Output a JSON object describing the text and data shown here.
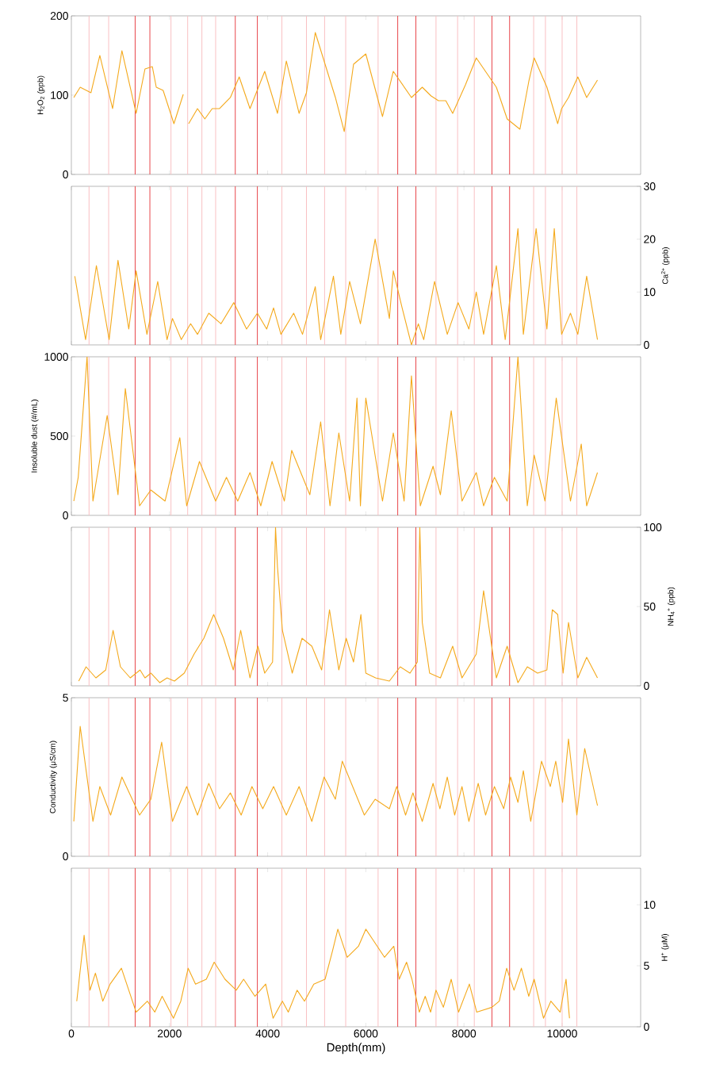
{
  "chart_data": [
    {
      "type": "line",
      "ylabel": "H$_{2}$O$_{2}$ (ppb)",
      "xlim": [
        0,
        11600
      ],
      "xticks": [
        0,
        2000,
        4000,
        6000,
        8000,
        10000
      ],
      "ylim": [
        0,
        200
      ],
      "yticks": [
        0,
        100,
        200
      ],
      "tick_labels": "y",
      "x": [
        10720,
        10500,
        10320,
        10130,
        9990,
        9910,
        9690,
        9430,
        9320,
        9140,
        8880,
        8660,
        8250,
        8030,
        7770,
        7630,
        7480,
        7330,
        7150,
        6930,
        6560,
        6340,
        6000,
        5750,
        5560,
        5380,
        4970,
        4790,
        4640,
        4380,
        4200,
        3940,
        3640,
        3420,
        3240,
        3020,
        2870,
        2720,
        2570,
        2390,
        2330,
        2280,
        2090,
        1870,
        1730,
        1650,
        1500,
        1320,
        1030,
        840,
        580,
        400,
        180,
        50
      ],
      "series": [
        {
          "color": "#f4a91c",
          "values": [
            119,
            97,
            123,
            97,
            83,
            64,
            110,
            147,
            117,
            57,
            70,
            110,
            147,
            113,
            77,
            93,
            93,
            99,
            110,
            97,
            130,
            73,
            152,
            139,
            54,
            97,
            179,
            103,
            77,
            143,
            77,
            130,
            83,
            123,
            97,
            83,
            83,
            70,
            83,
            64,
            null,
            101,
            64,
            106,
            110,
            136,
            133,
            77,
            156,
            83,
            150,
            103,
            110,
            97
          ]
        }
      ],
      "ref_lines": [
        {
          "axis": "x",
          "value": 360,
          "color": "#f9c0c3"
        },
        {
          "axis": "x",
          "value": 760,
          "color": "#f9c0c3"
        },
        {
          "axis": "x",
          "value": 1300,
          "color": "#e8474c"
        },
        {
          "axis": "x",
          "value": 1600,
          "color": "#e8474c"
        },
        {
          "axis": "x",
          "value": 2030,
          "color": "#f9c0c3"
        },
        {
          "axis": "x",
          "value": 2370,
          "color": "#f9c0c3"
        },
        {
          "axis": "x",
          "value": 2660,
          "color": "#f9c0c3"
        },
        {
          "axis": "x",
          "value": 2940,
          "color": "#f9c0c3"
        },
        {
          "axis": "x",
          "value": 3340,
          "color": "#e8474c"
        },
        {
          "axis": "x",
          "value": 3790,
          "color": "#e8474c"
        },
        {
          "axis": "x",
          "value": 4290,
          "color": "#f9c0c3"
        },
        {
          "axis": "x",
          "value": 4790,
          "color": "#f9c0c3"
        },
        {
          "axis": "x",
          "value": 5160,
          "color": "#f9c0c3"
        },
        {
          "axis": "x",
          "value": 5590,
          "color": "#f9c0c3"
        },
        {
          "axis": "x",
          "value": 6250,
          "color": "#f9c0c3"
        },
        {
          "axis": "x",
          "value": 6650,
          "color": "#e8474c"
        },
        {
          "axis": "x",
          "value": 7020,
          "color": "#e8474c"
        },
        {
          "axis": "x",
          "value": 7430,
          "color": "#f9c0c3"
        },
        {
          "axis": "x",
          "value": 7870,
          "color": "#f9c0c3"
        },
        {
          "axis": "x",
          "value": 8210,
          "color": "#f9c0c3"
        },
        {
          "axis": "x",
          "value": 8570,
          "color": "#e8474c"
        },
        {
          "axis": "x",
          "value": 8930,
          "color": "#e8474c"
        },
        {
          "axis": "x",
          "value": 9420,
          "color": "#f9c0c3"
        },
        {
          "axis": "x",
          "value": 9660,
          "color": "#f9c0c3"
        },
        {
          "axis": "x",
          "value": 10000,
          "color": "#f9c0c3"
        },
        {
          "axis": "x",
          "value": 10300,
          "color": "#f9c0c3"
        }
      ]
    },
    {
      "type": "line",
      "ylabel": "Ca$^{2+}$ (ppb)",
      "xlim": [
        0,
        11600
      ],
      "xticks": [
        0,
        2000,
        4000,
        6000,
        8000,
        10000
      ],
      "ylim": [
        0,
        30
      ],
      "yticks": [
        0,
        10,
        20,
        30
      ],
      "tick_labels": "y",
      "x": [
        10720,
        10500,
        10320,
        10170,
        9990,
        9840,
        9690,
        9470,
        9210,
        9100,
        8840,
        8660,
        8400,
        8250,
        8100,
        7880,
        7660,
        7400,
        7180,
        7070,
        6930,
        6740,
        6560,
        6480,
        6190,
        5890,
        5670,
        5490,
        5340,
        5080,
        4970,
        4710,
        4530,
        4270,
        4120,
        3980,
        3790,
        3570,
        3310,
        3050,
        2800,
        2570,
        2430,
        2240,
        2060,
        1950,
        1760,
        1540,
        1320,
        1170,
        950,
        770,
        510,
        290,
        70
      ],
      "series": [
        {
          "color": "#f4a91c",
          "values": [
            1,
            13,
            2,
            6,
            2,
            22,
            3,
            22,
            2,
            22,
            1,
            15,
            2,
            10,
            3,
            8,
            2,
            12,
            1,
            4,
            0,
            7,
            14,
            5,
            20,
            4,
            12,
            2,
            13,
            1,
            11,
            2,
            6,
            2,
            7,
            3,
            6,
            3,
            8,
            4,
            6,
            2,
            4,
            1,
            5,
            1,
            12,
            2,
            14,
            3,
            16,
            1,
            15,
            1,
            13
          ]
        }
      ],
      "ref_lines": [
        {
          "axis": "x",
          "value": 360,
          "color": "#f9c0c3"
        },
        {
          "axis": "x",
          "value": 760,
          "color": "#f9c0c3"
        },
        {
          "axis": "x",
          "value": 1300,
          "color": "#e8474c"
        },
        {
          "axis": "x",
          "value": 1600,
          "color": "#e8474c"
        },
        {
          "axis": "x",
          "value": 2030,
          "color": "#f9c0c3"
        },
        {
          "axis": "x",
          "value": 2370,
          "color": "#f9c0c3"
        },
        {
          "axis": "x",
          "value": 2660,
          "color": "#f9c0c3"
        },
        {
          "axis": "x",
          "value": 2940,
          "color": "#f9c0c3"
        },
        {
          "axis": "x",
          "value": 3340,
          "color": "#e8474c"
        },
        {
          "axis": "x",
          "value": 3790,
          "color": "#e8474c"
        },
        {
          "axis": "x",
          "value": 4290,
          "color": "#f9c0c3"
        },
        {
          "axis": "x",
          "value": 4790,
          "color": "#f9c0c3"
        },
        {
          "axis": "x",
          "value": 5160,
          "color": "#f9c0c3"
        },
        {
          "axis": "x",
          "value": 5590,
          "color": "#f9c0c3"
        },
        {
          "axis": "x",
          "value": 6250,
          "color": "#f9c0c3"
        },
        {
          "axis": "x",
          "value": 6650,
          "color": "#e8474c"
        },
        {
          "axis": "x",
          "value": 7020,
          "color": "#e8474c"
        },
        {
          "axis": "x",
          "value": 7430,
          "color": "#f9c0c3"
        },
        {
          "axis": "x",
          "value": 7870,
          "color": "#f9c0c3"
        },
        {
          "axis": "x",
          "value": 8210,
          "color": "#f9c0c3"
        },
        {
          "axis": "x",
          "value": 8570,
          "color": "#e8474c"
        },
        {
          "axis": "x",
          "value": 8930,
          "color": "#e8474c"
        },
        {
          "axis": "x",
          "value": 9420,
          "color": "#f9c0c3"
        },
        {
          "axis": "x",
          "value": 9660,
          "color": "#f9c0c3"
        },
        {
          "axis": "x",
          "value": 10000,
          "color": "#f9c0c3"
        },
        {
          "axis": "x",
          "value": 10300,
          "color": "#f9c0c3"
        }
      ]
    },
    {
      "type": "line",
      "ylabel": "Insoluble dust (#/mL)",
      "xlim": [
        0,
        11600
      ],
      "xticks": [
        0,
        2000,
        4000,
        6000,
        8000,
        10000
      ],
      "ylim": [
        0,
        1000
      ],
      "yticks": [
        0,
        500,
        1000
      ],
      "tick_labels": "y",
      "x": [
        10720,
        10500,
        10390,
        10170,
        9880,
        9650,
        9430,
        9290,
        9100,
        8880,
        8620,
        8400,
        8250,
        7960,
        7740,
        7520,
        7370,
        7110,
        6930,
        6780,
        6560,
        6340,
        6000,
        5890,
        5820,
        5670,
        5450,
        5270,
        5080,
        4860,
        4490,
        4340,
        4090,
        3860,
        3640,
        3390,
        3160,
        2940,
        2610,
        2350,
        2210,
        1910,
        1620,
        1390,
        1100,
        950,
        730,
        440,
        320,
        140,
        50
      ],
      "series": [
        {
          "color": "#f4a91c",
          "values": [
            270,
            60,
            450,
            90,
            740,
            90,
            380,
            60,
            1000,
            90,
            240,
            60,
            270,
            90,
            660,
            130,
            310,
            60,
            880,
            90,
            520,
            90,
            740,
            60,
            740,
            90,
            520,
            60,
            590,
            130,
            410,
            90,
            340,
            60,
            270,
            90,
            240,
            90,
            340,
            60,
            490,
            90,
            160,
            60,
            800,
            130,
            630,
            90,
            1000,
            240,
            90
          ]
        }
      ],
      "ref_lines": [
        {
          "axis": "x",
          "value": 360,
          "color": "#f9c0c3"
        },
        {
          "axis": "x",
          "value": 760,
          "color": "#f9c0c3"
        },
        {
          "axis": "x",
          "value": 1300,
          "color": "#e8474c"
        },
        {
          "axis": "x",
          "value": 1600,
          "color": "#e8474c"
        },
        {
          "axis": "x",
          "value": 2030,
          "color": "#f9c0c3"
        },
        {
          "axis": "x",
          "value": 2370,
          "color": "#f9c0c3"
        },
        {
          "axis": "x",
          "value": 2660,
          "color": "#f9c0c3"
        },
        {
          "axis": "x",
          "value": 2940,
          "color": "#f9c0c3"
        },
        {
          "axis": "x",
          "value": 3340,
          "color": "#e8474c"
        },
        {
          "axis": "x",
          "value": 3790,
          "color": "#e8474c"
        },
        {
          "axis": "x",
          "value": 4290,
          "color": "#f9c0c3"
        },
        {
          "axis": "x",
          "value": 4790,
          "color": "#f9c0c3"
        },
        {
          "axis": "x",
          "value": 5160,
          "color": "#f9c0c3"
        },
        {
          "axis": "x",
          "value": 5590,
          "color": "#f9c0c3"
        },
        {
          "axis": "x",
          "value": 6250,
          "color": "#f9c0c3"
        },
        {
          "axis": "x",
          "value": 6650,
          "color": "#e8474c"
        },
        {
          "axis": "x",
          "value": 7020,
          "color": "#e8474c"
        },
        {
          "axis": "x",
          "value": 7430,
          "color": "#f9c0c3"
        },
        {
          "axis": "x",
          "value": 7870,
          "color": "#f9c0c3"
        },
        {
          "axis": "x",
          "value": 8210,
          "color": "#f9c0c3"
        },
        {
          "axis": "x",
          "value": 8570,
          "color": "#e8474c"
        },
        {
          "axis": "x",
          "value": 8930,
          "color": "#e8474c"
        },
        {
          "axis": "x",
          "value": 9420,
          "color": "#f9c0c3"
        },
        {
          "axis": "x",
          "value": 9660,
          "color": "#f9c0c3"
        },
        {
          "axis": "x",
          "value": 10000,
          "color": "#f9c0c3"
        },
        {
          "axis": "x",
          "value": 10300,
          "color": "#f9c0c3"
        }
      ]
    },
    {
      "type": "line",
      "ylabel": "NH$_{4}$$^{+}$ (ppb)",
      "xlim": [
        0,
        11600
      ],
      "xticks": [
        0,
        2000,
        4000,
        6000,
        8000,
        10000
      ],
      "ylim": [
        0,
        100
      ],
      "yticks": [
        0,
        50,
        100
      ],
      "tick_labels": "y",
      "x": [
        10720,
        10500,
        10320,
        10130,
        10020,
        9910,
        9800,
        9690,
        9500,
        9290,
        9100,
        8880,
        8660,
        8400,
        8250,
        7960,
        7770,
        7520,
        7300,
        7150,
        7100,
        7050,
        6900,
        6700,
        6480,
        6200,
        6000,
        5900,
        5750,
        5600,
        5450,
        5260,
        5100,
        4900,
        4700,
        4500,
        4300,
        4200,
        4160,
        4100,
        3940,
        3800,
        3640,
        3450,
        3300,
        3100,
        2900,
        2700,
        2500,
        2300,
        2100,
        1950,
        1800,
        1620,
        1500,
        1400,
        1200,
        1000,
        850,
        700,
        500,
        300,
        150
      ],
      "series": [
        {
          "color": "#f4a91c",
          "values": [
            5,
            18,
            5,
            40,
            8,
            45,
            48,
            10,
            8,
            12,
            2,
            25,
            5,
            60,
            20,
            5,
            25,
            5,
            8,
            40,
            100,
            15,
            8,
            12,
            3,
            5,
            8,
            45,
            15,
            30,
            10,
            48,
            10,
            25,
            30,
            8,
            35,
            75,
            100,
            15,
            8,
            25,
            5,
            35,
            10,
            30,
            45,
            30,
            20,
            8,
            3,
            5,
            2,
            8,
            5,
            10,
            5,
            12,
            35,
            10,
            5,
            12,
            3
          ]
        }
      ],
      "ref_lines": [
        {
          "axis": "x",
          "value": 360,
          "color": "#f9c0c3"
        },
        {
          "axis": "x",
          "value": 760,
          "color": "#f9c0c3"
        },
        {
          "axis": "x",
          "value": 1300,
          "color": "#e8474c"
        },
        {
          "axis": "x",
          "value": 1600,
          "color": "#e8474c"
        },
        {
          "axis": "x",
          "value": 2030,
          "color": "#f9c0c3"
        },
        {
          "axis": "x",
          "value": 2370,
          "color": "#f9c0c3"
        },
        {
          "axis": "x",
          "value": 2660,
          "color": "#f9c0c3"
        },
        {
          "axis": "x",
          "value": 2940,
          "color": "#f9c0c3"
        },
        {
          "axis": "x",
          "value": 3340,
          "color": "#e8474c"
        },
        {
          "axis": "x",
          "value": 3790,
          "color": "#e8474c"
        },
        {
          "axis": "x",
          "value": 4290,
          "color": "#f9c0c3"
        },
        {
          "axis": "x",
          "value": 4790,
          "color": "#f9c0c3"
        },
        {
          "axis": "x",
          "value": 5160,
          "color": "#f9c0c3"
        },
        {
          "axis": "x",
          "value": 5590,
          "color": "#f9c0c3"
        },
        {
          "axis": "x",
          "value": 6250,
          "color": "#f9c0c3"
        },
        {
          "axis": "x",
          "value": 6650,
          "color": "#e8474c"
        },
        {
          "axis": "x",
          "value": 7020,
          "color": "#e8474c"
        },
        {
          "axis": "x",
          "value": 7430,
          "color": "#f9c0c3"
        },
        {
          "axis": "x",
          "value": 7870,
          "color": "#f9c0c3"
        },
        {
          "axis": "x",
          "value": 8210,
          "color": "#f9c0c3"
        },
        {
          "axis": "x",
          "value": 8570,
          "color": "#e8474c"
        },
        {
          "axis": "x",
          "value": 8930,
          "color": "#e8474c"
        },
        {
          "axis": "x",
          "value": 9420,
          "color": "#f9c0c3"
        },
        {
          "axis": "x",
          "value": 9660,
          "color": "#f9c0c3"
        },
        {
          "axis": "x",
          "value": 10000,
          "color": "#f9c0c3"
        },
        {
          "axis": "x",
          "value": 10300,
          "color": "#f9c0c3"
        }
      ]
    },
    {
      "type": "line",
      "ylabel": "Conductivity (μS/cm)",
      "xlim": [
        0,
        11600
      ],
      "xticks": [
        0,
        2000,
        4000,
        6000,
        8000,
        10000
      ],
      "ylim": [
        0,
        5
      ],
      "yticks": [
        0,
        5
      ],
      "tick_labels": "y",
      "x": [
        10720,
        10460,
        10300,
        10130,
        10010,
        9870,
        9760,
        9580,
        9360,
        9210,
        9100,
        8950,
        8810,
        8620,
        8440,
        8290,
        8100,
        7960,
        7810,
        7660,
        7510,
        7370,
        7150,
        6960,
        6810,
        6630,
        6480,
        6190,
        5970,
        5520,
        5380,
        5150,
        4900,
        4640,
        4380,
        4120,
        3900,
        3680,
        3460,
        3240,
        3020,
        2800,
        2570,
        2350,
        2060,
        1840,
        1620,
        1390,
        1030,
        800,
        580,
        440,
        180,
        50
      ],
      "series": [
        {
          "color": "#f4a91c",
          "values": [
            1.6,
            3.4,
            1.3,
            3.7,
            1.7,
            3.0,
            2.2,
            3.0,
            1.1,
            2.7,
            1.7,
            2.5,
            1.5,
            2.2,
            1.3,
            2.3,
            1.1,
            2.2,
            1.3,
            2.5,
            1.5,
            2.3,
            1.1,
            2.0,
            1.3,
            2.2,
            1.5,
            1.8,
            1.3,
            3.0,
            1.8,
            2.5,
            1.1,
            2.2,
            1.3,
            2.2,
            1.5,
            2.2,
            1.3,
            2.0,
            1.5,
            2.3,
            1.3,
            2.2,
            1.1,
            3.6,
            1.8,
            1.3,
            2.5,
            1.3,
            2.2,
            1.1,
            4.1,
            1.1
          ]
        }
      ],
      "ref_lines": [
        {
          "axis": "x",
          "value": 360,
          "color": "#f9c0c3"
        },
        {
          "axis": "x",
          "value": 760,
          "color": "#f9c0c3"
        },
        {
          "axis": "x",
          "value": 1300,
          "color": "#e8474c"
        },
        {
          "axis": "x",
          "value": 1600,
          "color": "#e8474c"
        },
        {
          "axis": "x",
          "value": 2030,
          "color": "#f9c0c3"
        },
        {
          "axis": "x",
          "value": 2370,
          "color": "#f9c0c3"
        },
        {
          "axis": "x",
          "value": 2660,
          "color": "#f9c0c3"
        },
        {
          "axis": "x",
          "value": 2940,
          "color": "#f9c0c3"
        },
        {
          "axis": "x",
          "value": 3340,
          "color": "#e8474c"
        },
        {
          "axis": "x",
          "value": 3790,
          "color": "#e8474c"
        },
        {
          "axis": "x",
          "value": 4290,
          "color": "#f9c0c3"
        },
        {
          "axis": "x",
          "value": 4790,
          "color": "#f9c0c3"
        },
        {
          "axis": "x",
          "value": 5160,
          "color": "#f9c0c3"
        },
        {
          "axis": "x",
          "value": 5590,
          "color": "#f9c0c3"
        },
        {
          "axis": "x",
          "value": 6250,
          "color": "#f9c0c3"
        },
        {
          "axis": "x",
          "value": 6650,
          "color": "#e8474c"
        },
        {
          "axis": "x",
          "value": 7020,
          "color": "#e8474c"
        },
        {
          "axis": "x",
          "value": 7430,
          "color": "#f9c0c3"
        },
        {
          "axis": "x",
          "value": 7870,
          "color": "#f9c0c3"
        },
        {
          "axis": "x",
          "value": 8210,
          "color": "#f9c0c3"
        },
        {
          "axis": "x",
          "value": 8570,
          "color": "#e8474c"
        },
        {
          "axis": "x",
          "value": 8930,
          "color": "#e8474c"
        },
        {
          "axis": "x",
          "value": 9420,
          "color": "#f9c0c3"
        },
        {
          "axis": "x",
          "value": 9660,
          "color": "#f9c0c3"
        },
        {
          "axis": "x",
          "value": 10000,
          "color": "#f9c0c3"
        },
        {
          "axis": "x",
          "value": 10300,
          "color": "#f9c0c3"
        }
      ]
    },
    {
      "type": "line",
      "xlabel": "Depth(mm)",
      "ylabel": "H$^{+}$ (μM)",
      "xlim": [
        0,
        11600
      ],
      "xticks": [
        0,
        2000,
        4000,
        6000,
        8000,
        10000
      ],
      "ylim": [
        0,
        13
      ],
      "yticks": [
        0,
        5,
        10
      ],
      "x": [
        10150,
        10080,
        9960,
        9770,
        9620,
        9430,
        9320,
        9170,
        9020,
        8870,
        8720,
        8570,
        8260,
        8110,
        7890,
        7740,
        7580,
        7430,
        7320,
        7210,
        7090,
        6940,
        6830,
        6680,
        6570,
        6380,
        6150,
        6000,
        5850,
        5620,
        5430,
        5320,
        5170,
        4940,
        4750,
        4600,
        4420,
        4300,
        4110,
        3960,
        3740,
        3510,
        3360,
        3130,
        2910,
        2750,
        2530,
        2380,
        2230,
        2080,
        1850,
        1700,
        1550,
        1320,
        1170,
        1020,
        790,
        640,
        490,
        380,
        260,
        110
      ],
      "series": [
        {
          "color": "#f4a91c",
          "values": [
            0.7,
            3.9,
            1.2,
            2.1,
            0.7,
            3.9,
            2.5,
            4.8,
            3.0,
            4.8,
            2.1,
            1.6,
            1.2,
            3.5,
            1.2,
            3.9,
            1.6,
            3.0,
            1.2,
            2.5,
            1.2,
            3.9,
            5.3,
            3.9,
            6.6,
            5.7,
            7.1,
            8.0,
            6.6,
            5.7,
            8.0,
            6.2,
            3.9,
            3.5,
            2.1,
            3.0,
            1.2,
            2.1,
            0.7,
            3.5,
            2.5,
            3.9,
            3.0,
            3.9,
            5.3,
            3.9,
            3.5,
            4.8,
            2.1,
            0.7,
            2.5,
            1.2,
            2.1,
            1.2,
            3.0,
            4.8,
            3.5,
            2.1,
            4.4,
            3.0,
            7.5,
            2.1
          ]
        }
      ],
      "ref_lines": [
        {
          "axis": "x",
          "value": 360,
          "color": "#f9c0c3"
        },
        {
          "axis": "x",
          "value": 760,
          "color": "#f9c0c3"
        },
        {
          "axis": "x",
          "value": 1300,
          "color": "#e8474c"
        },
        {
          "axis": "x",
          "value": 1600,
          "color": "#e8474c"
        },
        {
          "axis": "x",
          "value": 2030,
          "color": "#f9c0c3"
        },
        {
          "axis": "x",
          "value": 2370,
          "color": "#f9c0c3"
        },
        {
          "axis": "x",
          "value": 2660,
          "color": "#f9c0c3"
        },
        {
          "axis": "x",
          "value": 2940,
          "color": "#f9c0c3"
        },
        {
          "axis": "x",
          "value": 3340,
          "color": "#e8474c"
        },
        {
          "axis": "x",
          "value": 3790,
          "color": "#e8474c"
        },
        {
          "axis": "x",
          "value": 4290,
          "color": "#f9c0c3"
        },
        {
          "axis": "x",
          "value": 4790,
          "color": "#f9c0c3"
        },
        {
          "axis": "x",
          "value": 5160,
          "color": "#f9c0c3"
        },
        {
          "axis": "x",
          "value": 5590,
          "color": "#f9c0c3"
        },
        {
          "axis": "x",
          "value": 6250,
          "color": "#f9c0c3"
        },
        {
          "axis": "x",
          "value": 6650,
          "color": "#e8474c"
        },
        {
          "axis": "x",
          "value": 7020,
          "color": "#e8474c"
        },
        {
          "axis": "x",
          "value": 7430,
          "color": "#f9c0c3"
        },
        {
          "axis": "x",
          "value": 7870,
          "color": "#f9c0c3"
        },
        {
          "axis": "x",
          "value": 8210,
          "color": "#f9c0c3"
        },
        {
          "axis": "x",
          "value": 8570,
          "color": "#e8474c"
        },
        {
          "axis": "x",
          "value": 8930,
          "color": "#e8474c"
        },
        {
          "axis": "x",
          "value": 9420,
          "color": "#f9c0c3"
        },
        {
          "axis": "x",
          "value": 9660,
          "color": "#f9c0c3"
        },
        {
          "axis": "x",
          "value": 10000,
          "color": "#f9c0c3"
        },
        {
          "axis": "x",
          "value": 10300,
          "color": "#f9c0c3"
        }
      ]
    }
  ]
}
